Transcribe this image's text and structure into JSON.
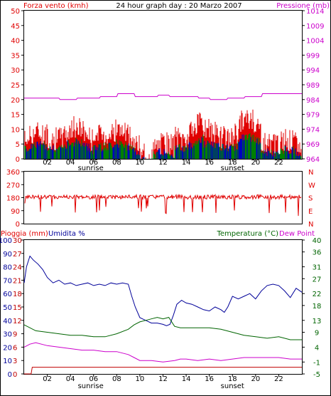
{
  "header": {
    "wind_label": "Forza vento (kmh)",
    "title": "24 hour graph day : 20 Marzo 2007",
    "pressure_label": "Pressione (mb)"
  },
  "colors": {
    "wind_gust": "#e00000",
    "wind_avg": "#0000c0",
    "wind_dir": "#e00000",
    "rain": "#c00000",
    "humidity": "#000099",
    "temperature": "#006400",
    "dew_point": "#cc00cc",
    "pressure": "#cc00cc",
    "frame": "#000000"
  },
  "chart_data": [
    {
      "type": "line",
      "name": "wind-pressure",
      "title": "24 hour graph day : 20 Marzo 2007",
      "ylabel": "Forza vento (kmh)",
      "ylabel_right": "Pressione (mb)",
      "x_ticks": [
        "02",
        "04",
        "06",
        "08",
        "10",
        "12",
        "14",
        "16",
        "18",
        "20",
        "22"
      ],
      "x_range_hours": [
        0,
        24
      ],
      "sunrise": {
        "label": "sunrise",
        "hour": 5.75
      },
      "sunset": {
        "label": "sunset",
        "hour": 18.0
      },
      "ylim_left": [
        0,
        50
      ],
      "yticks_left": [
        0,
        5,
        10,
        15,
        20,
        25,
        30,
        35,
        40,
        45,
        50
      ],
      "ylim_right": [
        964,
        1014
      ],
      "yticks_right": [
        964,
        969,
        974,
        979,
        984,
        989,
        994,
        999,
        1004,
        1009,
        1014
      ],
      "pressure": [
        [
          0,
          984.5
        ],
        [
          3,
          984.5
        ],
        [
          3.1,
          984
        ],
        [
          4.5,
          984
        ],
        [
          4.6,
          984.5
        ],
        [
          6.5,
          984.5
        ],
        [
          6.6,
          985
        ],
        [
          8,
          985
        ],
        [
          8.1,
          986
        ],
        [
          9.5,
          986
        ],
        [
          9.6,
          985
        ],
        [
          11.5,
          985
        ],
        [
          11.6,
          985.5
        ],
        [
          12.5,
          985.5
        ],
        [
          12.6,
          985
        ],
        [
          15,
          985
        ],
        [
          15.1,
          984.5
        ],
        [
          16,
          984.5
        ],
        [
          16.1,
          984
        ],
        [
          17.5,
          984
        ],
        [
          17.6,
          984.5
        ],
        [
          19,
          984.5
        ],
        [
          19.1,
          985
        ],
        [
          20.5,
          985
        ],
        [
          20.6,
          986
        ],
        [
          24,
          986
        ]
      ]
    },
    {
      "type": "line",
      "name": "wind-direction",
      "y_ticks_left": [
        0,
        90,
        180,
        270,
        360
      ],
      "y_ticks_right": [
        "N",
        "E",
        "S",
        "W",
        "N"
      ],
      "ylim": [
        0,
        360
      ],
      "typical_direction_deg": 180,
      "x_range_hours": [
        0,
        24
      ]
    },
    {
      "type": "line",
      "name": "temp-hum-rain",
      "ylabel_left_1": "Pioggia (mm)",
      "ylabel_left_2": "Umidita %",
      "ylabel_right_1": "Temperatura (°C)",
      "ylabel_right_2": "Dew Point",
      "x_ticks": [
        "02",
        "04",
        "06",
        "08",
        "10",
        "12",
        "14",
        "16",
        "18",
        "20",
        "22"
      ],
      "sunrise": {
        "label": "sunrise",
        "hour": 5.75
      },
      "sunset": {
        "label": "sunset",
        "hour": 18.0
      },
      "yticks_humidity": [
        0,
        10,
        20,
        30,
        40,
        50,
        60,
        70,
        80,
        90,
        100
      ],
      "yticks_rain": [
        0,
        3,
        6,
        9,
        12,
        15,
        18,
        21,
        24,
        27,
        30
      ],
      "yticks_temp": [
        -5,
        -1,
        4,
        9,
        13,
        18,
        22,
        27,
        31,
        36,
        40
      ],
      "ylim_humidity": [
        0,
        100
      ],
      "ylim_temp": [
        -5,
        40
      ],
      "humidity": [
        [
          0,
          68
        ],
        [
          0.2,
          80
        ],
        [
          0.5,
          88
        ],
        [
          0.8,
          85
        ],
        [
          1.2,
          82
        ],
        [
          1.6,
          78
        ],
        [
          2,
          72
        ],
        [
          2.5,
          68
        ],
        [
          3,
          70
        ],
        [
          3.5,
          67
        ],
        [
          4,
          68
        ],
        [
          4.5,
          66
        ],
        [
          5,
          67
        ],
        [
          5.5,
          68
        ],
        [
          6,
          66
        ],
        [
          6.5,
          67
        ],
        [
          7,
          66
        ],
        [
          7.5,
          68
        ],
        [
          8,
          67
        ],
        [
          8.5,
          68
        ],
        [
          9,
          67
        ],
        [
          9.3,
          58
        ],
        [
          9.6,
          50
        ],
        [
          10,
          42
        ],
        [
          10.5,
          40
        ],
        [
          11,
          38
        ],
        [
          11.5,
          38
        ],
        [
          12,
          37
        ],
        [
          12.3,
          36
        ],
        [
          12.6,
          37
        ],
        [
          12.9,
          44
        ],
        [
          13.2,
          52
        ],
        [
          13.6,
          55
        ],
        [
          14,
          53
        ],
        [
          14.5,
          52
        ],
        [
          15,
          50
        ],
        [
          15.5,
          48
        ],
        [
          16,
          47
        ],
        [
          16.5,
          50
        ],
        [
          17,
          48
        ],
        [
          17.3,
          46
        ],
        [
          17.6,
          50
        ],
        [
          18,
          58
        ],
        [
          18.5,
          56
        ],
        [
          19,
          58
        ],
        [
          19.5,
          60
        ],
        [
          20,
          56
        ],
        [
          20.5,
          62
        ],
        [
          21,
          66
        ],
        [
          21.5,
          67
        ],
        [
          22,
          66
        ],
        [
          22.5,
          62
        ],
        [
          23,
          57
        ],
        [
          23.5,
          64
        ],
        [
          24,
          61
        ]
      ],
      "temperature": [
        [
          0,
          11.5
        ],
        [
          1,
          9.5
        ],
        [
          2,
          9
        ],
        [
          3,
          8.5
        ],
        [
          4,
          8
        ],
        [
          5,
          8
        ],
        [
          6,
          7.5
        ],
        [
          7,
          7.5
        ],
        [
          8,
          8.5
        ],
        [
          9,
          10
        ],
        [
          9.5,
          11.5
        ],
        [
          10,
          12.5
        ],
        [
          10.5,
          13
        ],
        [
          11,
          13.5
        ],
        [
          11.5,
          14
        ],
        [
          12,
          13.5
        ],
        [
          12.5,
          14
        ],
        [
          13,
          11
        ],
        [
          13.5,
          10.5
        ],
        [
          14,
          10.5
        ],
        [
          15,
          10.5
        ],
        [
          16,
          10.5
        ],
        [
          17,
          10
        ],
        [
          18,
          9
        ],
        [
          19,
          8
        ],
        [
          20,
          7.5
        ],
        [
          21,
          7
        ],
        [
          22,
          7.5
        ],
        [
          23,
          6.5
        ],
        [
          24,
          6.5
        ]
      ],
      "dew_point": [
        [
          0,
          4
        ],
        [
          0.5,
          5
        ],
        [
          1,
          5.5
        ],
        [
          2,
          4.5
        ],
        [
          3,
          4
        ],
        [
          4,
          3.5
        ],
        [
          5,
          3
        ],
        [
          6,
          3
        ],
        [
          7,
          2.5
        ],
        [
          8,
          2.5
        ],
        [
          9,
          1.5
        ],
        [
          9.5,
          0.5
        ],
        [
          10,
          -0.5
        ],
        [
          11,
          -0.5
        ],
        [
          12,
          -1
        ],
        [
          13,
          -0.5
        ],
        [
          13.5,
          0
        ],
        [
          14,
          0
        ],
        [
          15,
          -0.5
        ],
        [
          16,
          0
        ],
        [
          17,
          -0.5
        ],
        [
          18,
          0
        ],
        [
          19,
          0.5
        ],
        [
          20,
          0.5
        ],
        [
          21,
          0.5
        ],
        [
          22,
          0.5
        ],
        [
          23,
          0
        ],
        [
          24,
          0
        ]
      ],
      "rain_mm": [
        [
          0,
          0
        ],
        [
          0.6,
          0
        ],
        [
          0.7,
          1.5
        ],
        [
          24,
          1.5
        ]
      ]
    }
  ]
}
